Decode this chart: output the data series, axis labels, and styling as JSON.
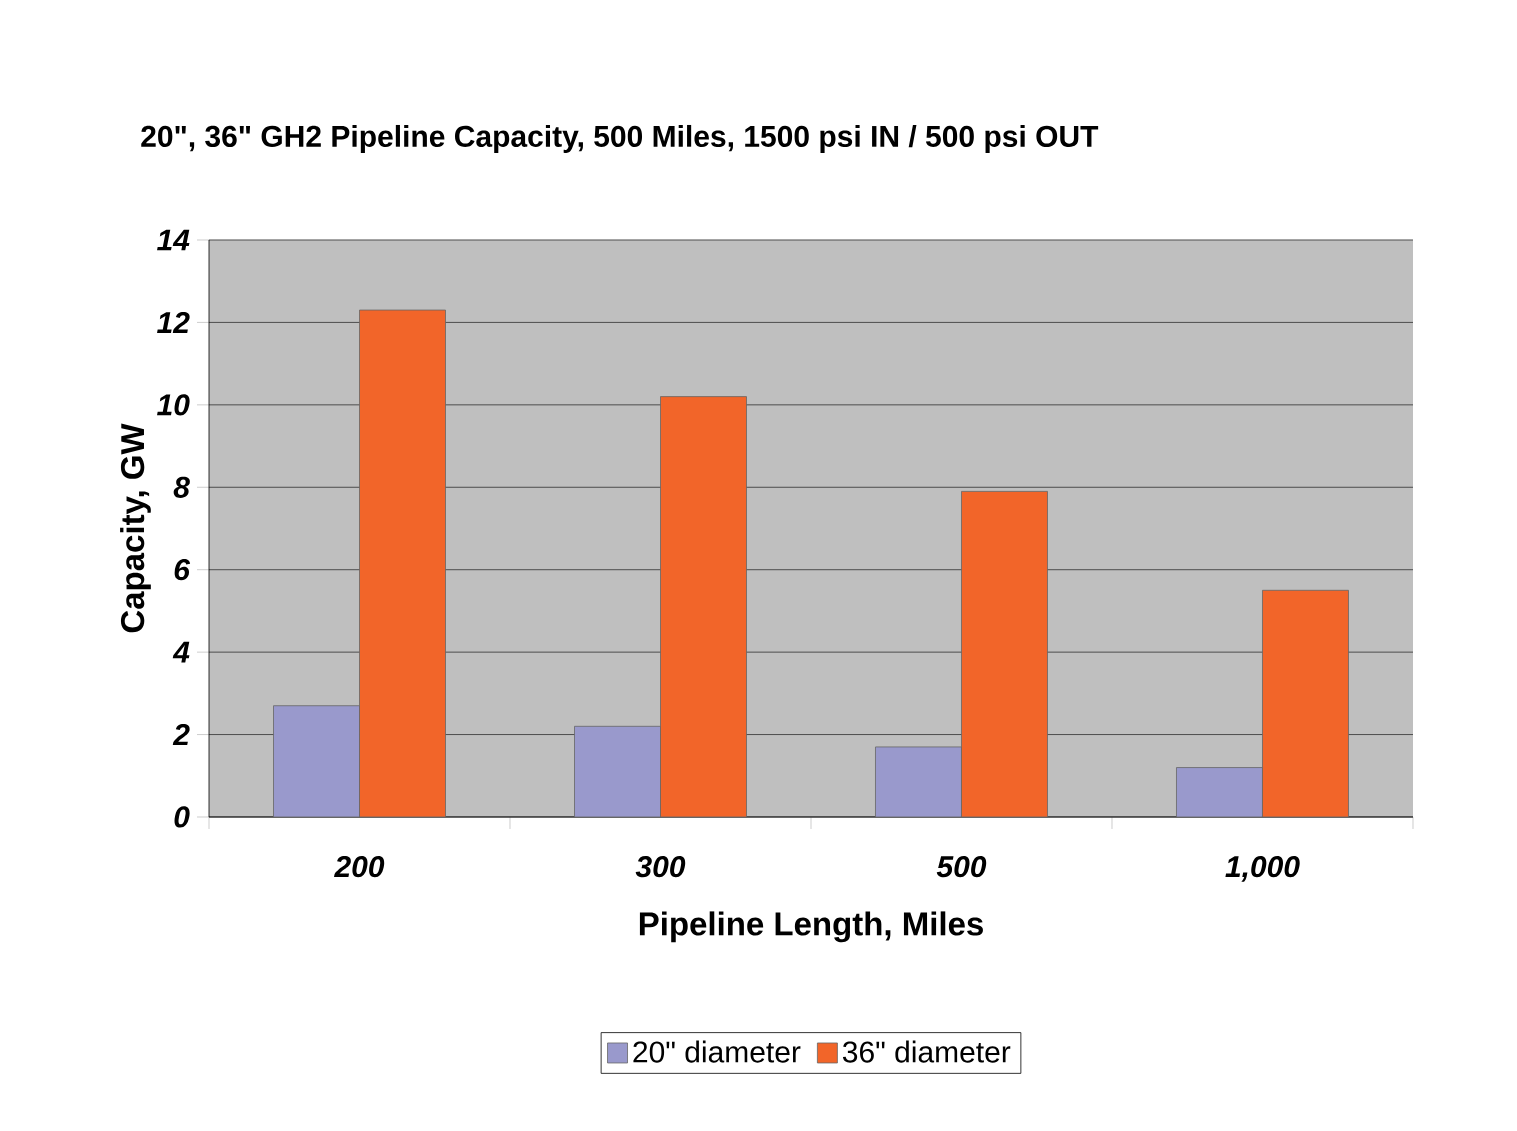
{
  "chart_data": {
    "type": "bar",
    "title": "20\", 36\" GH2 Pipeline Capacity, 500 Miles, 1500 psi IN / 500 psi OUT",
    "xlabel": "Pipeline Length,  Miles",
    "ylabel": "Capacity, GW",
    "categories": [
      "200",
      "300",
      "500",
      "1,000"
    ],
    "series": [
      {
        "name": "20\" diameter",
        "color": "#9999cc",
        "values": [
          2.7,
          2.2,
          1.7,
          1.2
        ]
      },
      {
        "name": "36\" diameter",
        "color": "#f26529",
        "values": [
          12.3,
          10.2,
          7.9,
          5.5
        ]
      }
    ],
    "ylim": [
      0,
      14
    ],
    "yticks": [
      0,
      2,
      4,
      6,
      8,
      10,
      12,
      14
    ],
    "grid": "y",
    "legend": "bottom"
  }
}
